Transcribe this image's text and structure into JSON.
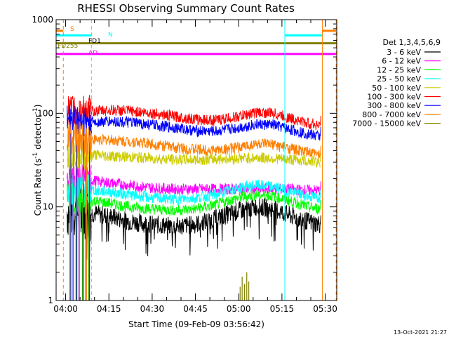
{
  "chart_data": {
    "type": "line",
    "title": "RHESSI Observing Summary Count Rates",
    "xlabel": "Start Time (09-Feb-09 03:56:42)",
    "ylabel_main": "Count Rate (s",
    "ylabel_mid": " detector",
    "ylabel_end": ")",
    "ylabel_exp": "-1",
    "ylim": [
      1,
      1000
    ],
    "yscale": "log",
    "yticks": [
      {
        "label": "1",
        "value": 1
      },
      {
        "label": "10",
        "value": 10
      },
      {
        "label": "100",
        "value": 100
      },
      {
        "label": "1000",
        "value": 1000
      }
    ],
    "xlim_min": [
      236.7,
      334.0
    ],
    "xticks": [
      {
        "label": "04:00",
        "value": 240
      },
      {
        "label": "04:15",
        "value": 255
      },
      {
        "label": "04:30",
        "value": 270
      },
      {
        "label": "04:45",
        "value": 285
      },
      {
        "label": "05:00",
        "value": 300
      },
      {
        "label": "05:15",
        "value": 315
      },
      {
        "label": "05:30",
        "value": 330
      }
    ],
    "legend": {
      "placement": "right",
      "header": "Det 1,3,4,5,6,9",
      "entries": [
        {
          "label": "3 - 6 keV",
          "color": "#000000"
        },
        {
          "label": "6 - 12 keV",
          "color": "#ff00ff"
        },
        {
          "label": "12 - 25 keV",
          "color": "#00ff00"
        },
        {
          "label": "25 - 50 keV",
          "color": "#00ffff"
        },
        {
          "label": "50 - 100 keV",
          "color": "#cccc00"
        },
        {
          "label": "100 - 300 keV",
          "color": "#ff0000"
        },
        {
          "label": "300 - 800 keV",
          "color": "#0000ff"
        },
        {
          "label": "800 - 7000 keV",
          "color": "#ff8000"
        },
        {
          "label": "7000 - 15000 keV",
          "color": "#808000"
        }
      ]
    },
    "flags": [
      {
        "label": "S",
        "color": "#ff8000",
        "level": 760,
        "segments": [
          [
            236.7,
            239.2
          ],
          [
            329.0,
            333.8
          ]
        ]
      },
      {
        "label": "N",
        "color": "#00ffff",
        "level": 680,
        "segments": [
          [
            236.7,
            249.0
          ],
          [
            316.0,
            329.0
          ]
        ]
      },
      {
        "label": "FD255",
        "color": "#808000",
        "level": 560,
        "segments": [
          [
            236.7,
            334.0
          ]
        ]
      },
      {
        "label": "FD1",
        "color": "#000000",
        "level": 600,
        "segments": []
      },
      {
        "label": "AD",
        "color": "#ff00ff",
        "level": 430,
        "segments": [
          [
            236.7,
            334.0
          ]
        ]
      }
    ],
    "vlines": [
      {
        "x": 239.2,
        "color": "#ff8000",
        "dashed": true
      },
      {
        "x": 249.0,
        "color": "#00ffff",
        "dashed": true
      },
      {
        "x": 316.0,
        "color": "#00ffff",
        "dashed": false
      },
      {
        "x": 329.0,
        "color": "#ff8000",
        "dashed": false
      },
      {
        "x": 333.8,
        "color": "#ff8000",
        "dashed": true
      }
    ],
    "series": [
      {
        "name": "3 - 6 keV",
        "color": "#000000",
        "x": [
          242,
          250,
          255,
          262,
          270,
          278,
          285,
          292,
          300,
          306,
          312,
          318,
          324,
          328
        ],
        "y": [
          9,
          8.5,
          8,
          7,
          6.5,
          6.2,
          6.5,
          7.5,
          9,
          10,
          9.5,
          8,
          7,
          6.5
        ]
      },
      {
        "name": "6 - 12 keV",
        "color": "#ff00ff",
        "x": [
          242,
          250,
          255,
          262,
          270,
          278,
          285,
          292,
          300,
          306,
          312,
          318,
          324,
          328
        ],
        "y": [
          20,
          19,
          18,
          17,
          16,
          15.5,
          15.5,
          15.5,
          15.5,
          15.5,
          15.5,
          15.5,
          15,
          15
        ]
      },
      {
        "name": "12 - 25 keV",
        "color": "#00ff00",
        "x": [
          242,
          250,
          255,
          262,
          270,
          278,
          285,
          292,
          300,
          306,
          312,
          318,
          324,
          328
        ],
        "y": [
          12,
          11.5,
          11,
          10,
          9.5,
          9.2,
          9.5,
          10.5,
          12.5,
          13.5,
          13,
          11.5,
          10,
          9.5
        ]
      },
      {
        "name": "25 - 50 keV",
        "color": "#00ffff",
        "x": [
          242,
          250,
          255,
          262,
          270,
          278,
          285,
          292,
          300,
          306,
          312,
          318,
          324,
          328
        ],
        "y": [
          16,
          15,
          14.5,
          13.5,
          12.5,
          12,
          12.5,
          13.5,
          16,
          17,
          16.5,
          14.5,
          13,
          12.5
        ]
      },
      {
        "name": "50 - 100 keV",
        "color": "#cccc00",
        "x": [
          242,
          250,
          255,
          262,
          270,
          278,
          285,
          292,
          300,
          306,
          312,
          318,
          324,
          328
        ],
        "y": [
          38,
          36,
          35,
          34,
          33,
          32,
          32,
          32.5,
          33,
          33.5,
          33,
          32,
          31,
          30
        ]
      },
      {
        "name": "100 - 300 keV",
        "color": "#ff0000",
        "x": [
          242,
          250,
          255,
          262,
          270,
          278,
          285,
          292,
          300,
          306,
          312,
          318,
          324,
          328
        ],
        "y": [
          105,
          105,
          108,
          106,
          100,
          92,
          86,
          84,
          92,
          102,
          100,
          88,
          78,
          75
        ]
      },
      {
        "name": "300 - 800 keV",
        "color": "#0000ff",
        "x": [
          242,
          250,
          255,
          262,
          270,
          278,
          285,
          292,
          300,
          306,
          312,
          318,
          324,
          328
        ],
        "y": [
          85,
          80,
          82,
          80,
          75,
          70,
          65,
          64,
          70,
          76,
          75,
          67,
          60,
          57
        ]
      },
      {
        "name": "800 - 7000 keV",
        "color": "#ff8000",
        "x": [
          242,
          250,
          255,
          262,
          270,
          278,
          285,
          292,
          300,
          306,
          312,
          318,
          324,
          328
        ],
        "y": [
          55,
          52,
          52,
          50,
          47,
          43,
          41,
          40,
          43,
          47,
          46,
          42,
          38,
          36
        ]
      },
      {
        "name": "7000 - 15000 keV",
        "color": "#808000",
        "x": [
          300.5,
          301.2,
          302,
          302.8,
          303.5
        ],
        "y": [
          1.4,
          1.8,
          1.5,
          2.0,
          1.6
        ]
      }
    ],
    "timestamp": "13-Oct-2021 21:27"
  }
}
